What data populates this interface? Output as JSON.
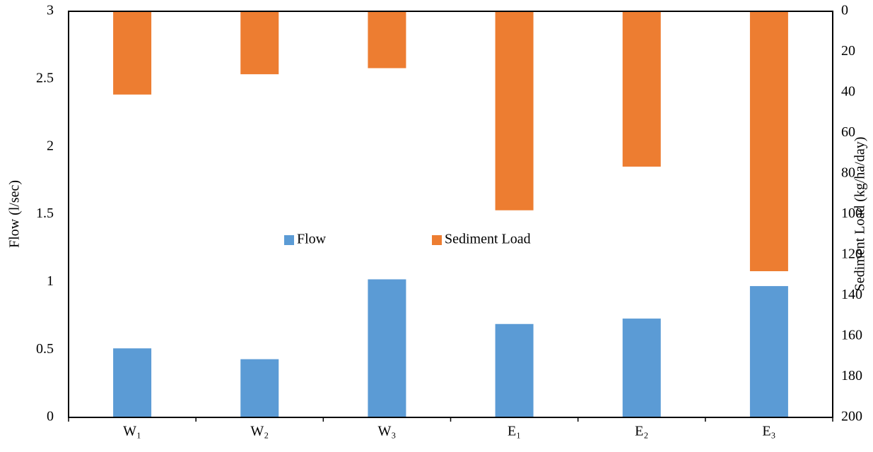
{
  "chart_data": {
    "type": "bar",
    "categories": [
      "W₁",
      "W₂",
      "W₃",
      "E₁",
      "E₂",
      "E₃"
    ],
    "series": [
      {
        "name": "Flow",
        "color": "#5b9bd5",
        "values": [
          0.51,
          0.43,
          1.02,
          0.69,
          0.73,
          0.97
        ]
      },
      {
        "name": "Sediment Load",
        "color": "#ed7d31",
        "axis": "y2",
        "values": [
          41,
          31,
          28,
          98,
          76.5,
          128
        ]
      }
    ],
    "ylabel": "Flow (l/sec)",
    "y2label": "Sediment Load (kg/ha/day)",
    "ylim": [
      0,
      3
    ],
    "yticks": [
      0,
      0.5,
      1,
      1.5,
      2,
      2.5,
      3
    ],
    "y2lim": [
      200,
      0
    ],
    "y2ticks": [
      0,
      20,
      40,
      60,
      80,
      100,
      120,
      140,
      160,
      180,
      200
    ],
    "legend": "center",
    "grid": false
  }
}
